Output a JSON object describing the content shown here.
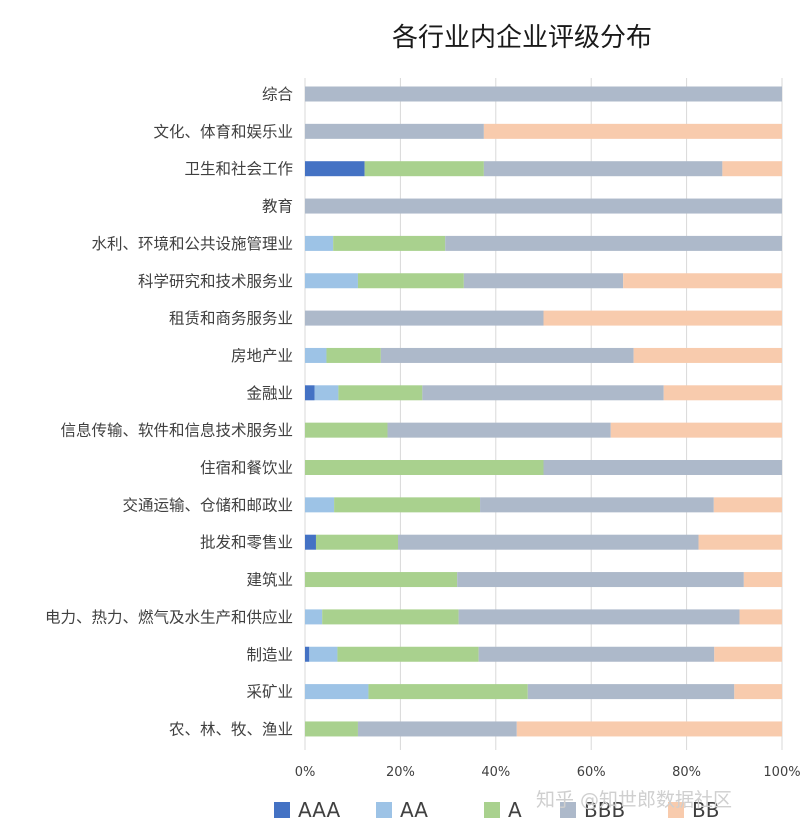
{
  "chart_data": {
    "type": "bar",
    "orientation": "horizontal",
    "stacked": "percent",
    "title": "各行业内企业评级分布",
    "categories": [
      "综合",
      "文化、体育和娱乐业",
      "卫生和社会工作",
      "教育",
      "水利、环境和公共设施管理业",
      "科学研究和技术服务业",
      "租赁和商务服务业",
      "房地产业",
      "金融业",
      "信息传输、软件和信息技术服务业",
      "住宿和餐饮业",
      "交通运输、仓储和邮政业",
      "批发和零售业",
      "建筑业",
      "电力、热力、燃气及水生产和供应业",
      "制造业",
      "采矿业",
      "农、林、牧、渔业"
    ],
    "series": [
      {
        "name": "AAA",
        "color": "#4472c4",
        "values": [
          0,
          0,
          12.5,
          0,
          0,
          0,
          0,
          0,
          2,
          0,
          0,
          0,
          2.3,
          0,
          0,
          0.9,
          0,
          0
        ]
      },
      {
        "name": "AA",
        "color": "#9dc3e6",
        "values": [
          0,
          0,
          0,
          0,
          5.9,
          11.1,
          0,
          4.5,
          5,
          0,
          0,
          6.1,
          0,
          0,
          3.6,
          5.9,
          13.3,
          0
        ]
      },
      {
        "name": "A",
        "color": "#a9d18e",
        "values": [
          0,
          0,
          25,
          0,
          23.5,
          22.2,
          0,
          11.4,
          17.6,
          17.3,
          50,
          30.6,
          17.2,
          31.9,
          28.6,
          29.6,
          33.4,
          11.1
        ]
      },
      {
        "name": "BBB",
        "color": "#adb9ca",
        "values": [
          100,
          37.5,
          50,
          100,
          70.6,
          33.4,
          50,
          53,
          50.6,
          46.8,
          50,
          49,
          63,
          60.1,
          58.9,
          49.4,
          43.3,
          33.3
        ]
      },
      {
        "name": "BB",
        "color": "#f8cbad",
        "values": [
          0,
          62.5,
          12.5,
          0,
          0,
          33.3,
          50,
          31.1,
          24.8,
          35.9,
          0,
          14.3,
          17.5,
          8,
          8.9,
          14.2,
          10,
          55.6
        ]
      }
    ],
    "xlim": [
      0,
      100
    ],
    "xticks": [
      "0%",
      "20%",
      "40%",
      "60%",
      "80%",
      "100%"
    ],
    "grid": true,
    "legend": "bottom"
  },
  "watermark": "知乎 @知世郎数据社区"
}
